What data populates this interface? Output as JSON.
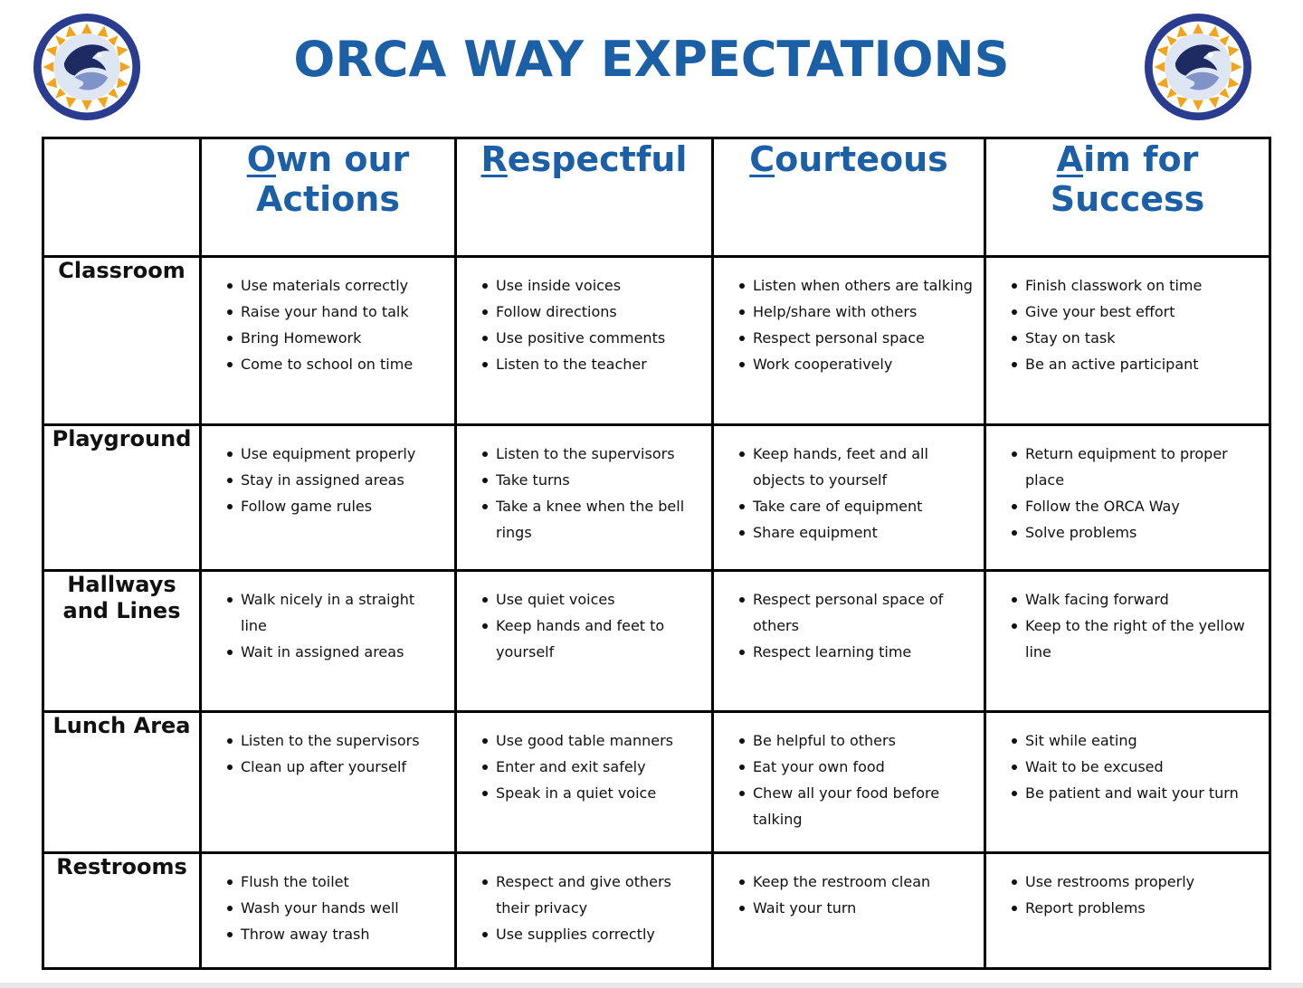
{
  "title": "ORCA WAY EXPECTATIONS",
  "colors": {
    "accent": "#1b5fa6",
    "logo_ring": "#2a3c8f",
    "logo_petals": "#f2a41c"
  },
  "logo_icon": "orca-logo-icon",
  "pillars": [
    {
      "first": "O",
      "rest": "wn our Actions"
    },
    {
      "first": "R",
      "rest": "espectful"
    },
    {
      "first": "C",
      "rest": "ourteous"
    },
    {
      "first": "A",
      "rest": "im for Success"
    }
  ],
  "rows": [
    {
      "area": "Classroom",
      "cells": [
        [
          "Use materials correctly",
          "Raise your hand to talk",
          "Bring Homework",
          "Come to school on time"
        ],
        [
          "Use inside voices",
          "Follow directions",
          "Use positive comments",
          "Listen to the teacher"
        ],
        [
          "Listen when others are talking",
          "Help/share with others",
          "Respect personal space",
          "Work cooperatively"
        ],
        [
          "Finish classwork on time",
          "Give your best effort",
          "Stay on task",
          "Be an active participant"
        ]
      ]
    },
    {
      "area": "Playground",
      "cells": [
        [
          "Use equipment properly",
          "Stay in assigned areas",
          "Follow game rules"
        ],
        [
          "Listen to the supervisors",
          "Take turns",
          "Take a knee when the bell rings"
        ],
        [
          "Keep hands, feet and all objects to yourself",
          "Take care of equipment",
          "Share equipment"
        ],
        [
          "Return equipment to proper place",
          "Follow the ORCA Way",
          "Solve problems"
        ]
      ]
    },
    {
      "area": "Hallways and Lines",
      "cells": [
        [
          "Walk nicely in a straight line",
          "Wait in assigned areas"
        ],
        [
          "Use quiet voices",
          "Keep hands and feet to yourself"
        ],
        [
          "Respect personal space of others",
          "Respect learning time"
        ],
        [
          "Walk facing forward",
          "Keep to the right of the yellow line"
        ]
      ]
    },
    {
      "area": "Lunch Area",
      "cells": [
        [
          "Listen to the supervisors",
          "Clean up after yourself"
        ],
        [
          "Use good table manners",
          "Enter and exit safely",
          "Speak in a quiet voice"
        ],
        [
          "Be helpful to others",
          "Eat your own food",
          "Chew all your food before talking"
        ],
        [
          "Sit while eating",
          "Wait to be excused",
          "Be patient and wait your turn"
        ]
      ]
    },
    {
      "area": "Restrooms",
      "cells": [
        [
          "Flush the toilet",
          "Wash your hands well",
          "Throw away trash"
        ],
        [
          "Respect and give others their privacy",
          "Use supplies correctly"
        ],
        [
          "Keep the restroom clean",
          "Wait your turn"
        ],
        [
          "Use restrooms properly",
          "Report problems"
        ]
      ]
    }
  ]
}
